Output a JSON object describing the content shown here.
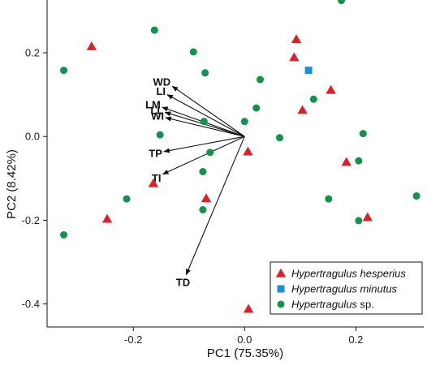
{
  "chart_data": {
    "type": "scatter",
    "xlabel": "PC1 (75.35%)",
    "ylabel": "PC2 (8.42%)",
    "xlim": [
      -0.355,
      0.322
    ],
    "ylim": [
      -0.455,
      0.326
    ],
    "xticks": [
      -0.2,
      0.0,
      0.2
    ],
    "xtick_labels": [
      "-0.2",
      "0.0",
      "0.2"
    ],
    "yticks": [
      0.2,
      0.0,
      -0.2,
      -0.4
    ],
    "ytick_labels": [
      "0.2",
      "0.0",
      "-0.2",
      "-0.4"
    ],
    "grid": false,
    "legend_position": "bottom-right",
    "series": [
      {
        "name": "Hypertragulus hesperius",
        "marker": "triangle",
        "color": "#e01e26",
        "points": [
          [
            -0.275,
            0.215
          ],
          [
            0.093,
            0.232
          ],
          [
            0.089,
            0.189
          ],
          [
            0.155,
            0.111
          ],
          [
            0.104,
            0.063
          ],
          [
            0.006,
            -0.036
          ],
          [
            -0.164,
            -0.112
          ],
          [
            -0.069,
            -0.148
          ],
          [
            -0.247,
            -0.197
          ],
          [
            0.183,
            -0.061
          ],
          [
            0.221,
            -0.193
          ],
          [
            0.007,
            -0.412
          ]
        ]
      },
      {
        "name": "Hypertragulus minutus",
        "marker": "square",
        "color": "#1a8ed8",
        "points": [
          [
            0.115,
            0.158
          ]
        ]
      },
      {
        "name": "Hypertragulus sp.",
        "marker": "circle",
        "color": "#10934a",
        "points": [
          [
            0.174,
            0.325
          ],
          [
            -0.162,
            0.254
          ],
          [
            -0.092,
            0.202
          ],
          [
            -0.325,
            0.158
          ],
          [
            -0.071,
            0.152
          ],
          [
            0.028,
            0.136
          ],
          [
            0.124,
            0.089
          ],
          [
            0.021,
            0.068
          ],
          [
            0.0,
            0.036
          ],
          [
            -0.073,
            0.036
          ],
          [
            -0.152,
            0.004
          ],
          [
            0.063,
            -0.003
          ],
          [
            0.213,
            0.007
          ],
          [
            -0.062,
            -0.038
          ],
          [
            0.205,
            -0.058
          ],
          [
            -0.075,
            -0.084
          ],
          [
            -0.212,
            -0.149
          ],
          [
            0.151,
            -0.149
          ],
          [
            -0.075,
            -0.175
          ],
          [
            0.309,
            -0.142
          ],
          [
            0.205,
            -0.201
          ],
          [
            -0.325,
            -0.235
          ]
        ]
      }
    ],
    "loadings": {
      "origin": [
        0.0,
        0.0
      ],
      "vectors": [
        {
          "label": "WD",
          "x": -0.13,
          "y": 0.12
        },
        {
          "label": "LI",
          "x": -0.139,
          "y": 0.1
        },
        {
          "label": "LM",
          "x": -0.148,
          "y": 0.07
        },
        {
          "label": "LL",
          "x": -0.143,
          "y": 0.058
        },
        {
          "label": "WI",
          "x": -0.142,
          "y": 0.045
        },
        {
          "label": "TP",
          "x": -0.145,
          "y": -0.036
        },
        {
          "label": "TI",
          "x": -0.147,
          "y": -0.09
        },
        {
          "label": "TD",
          "x": -0.105,
          "y": -0.33
        }
      ]
    }
  }
}
